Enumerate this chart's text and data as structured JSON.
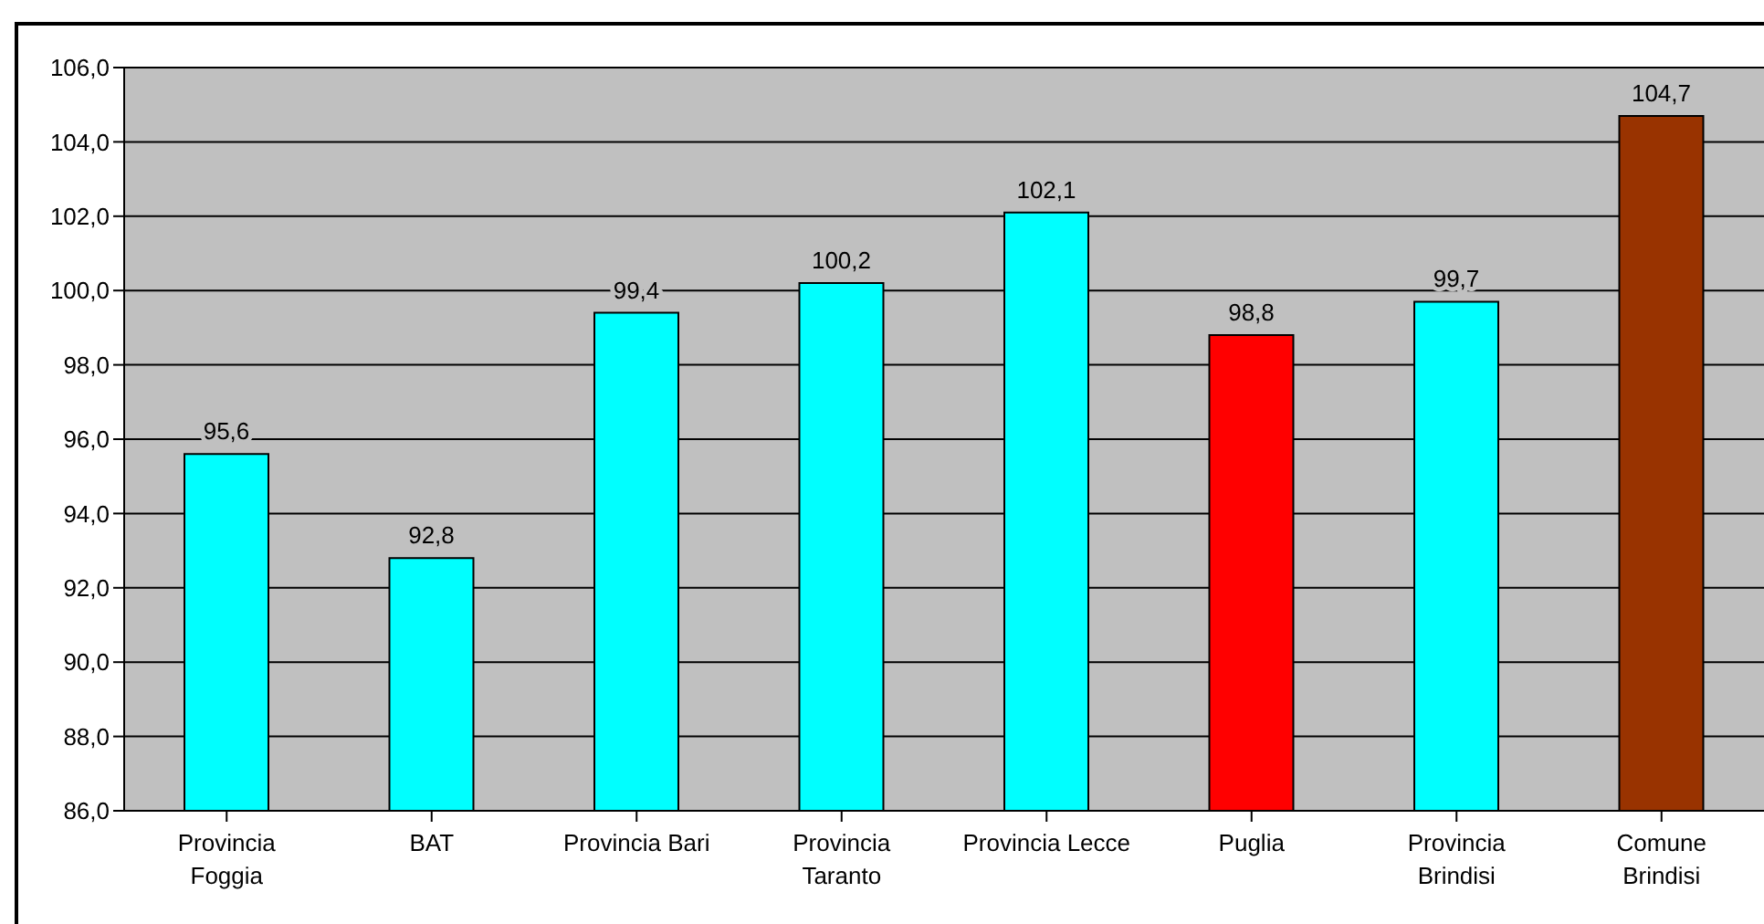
{
  "chart_data": {
    "type": "bar",
    "categories": [
      "Provincia\nFoggia",
      "BAT",
      "Provincia Bari",
      "Provincia\nTaranto",
      "Provincia Lecce",
      "Puglia",
      "Provincia\nBrindisi",
      "Comune\nBrindisi"
    ],
    "values": [
      95.6,
      92.8,
      99.4,
      100.2,
      102.1,
      98.8,
      99.7,
      104.7
    ],
    "colors": [
      "#00ffff",
      "#00ffff",
      "#00ffff",
      "#00ffff",
      "#00ffff",
      "#ff0000",
      "#00ffff",
      "#993300"
    ],
    "value_labels": [
      "95,6",
      "92,8",
      "99,4",
      "100,2",
      "102,1",
      "98,8",
      "99,7",
      "104,7"
    ],
    "ylim": [
      86,
      106
    ],
    "yticks": [
      {
        "value": 86,
        "label": "86,0"
      },
      {
        "value": 88,
        "label": "88,0"
      },
      {
        "value": 90,
        "label": "90,0"
      },
      {
        "value": 92,
        "label": "92,0"
      },
      {
        "value": 94,
        "label": "94,0"
      },
      {
        "value": 96,
        "label": "96,0"
      },
      {
        "value": 98,
        "label": "98,0"
      },
      {
        "value": 100,
        "label": "100,0"
      },
      {
        "value": 102,
        "label": "102,0"
      },
      {
        "value": 104,
        "label": "104,0"
      },
      {
        "value": 106,
        "label": "106,0"
      }
    ],
    "grid": "y",
    "legend": false
  }
}
